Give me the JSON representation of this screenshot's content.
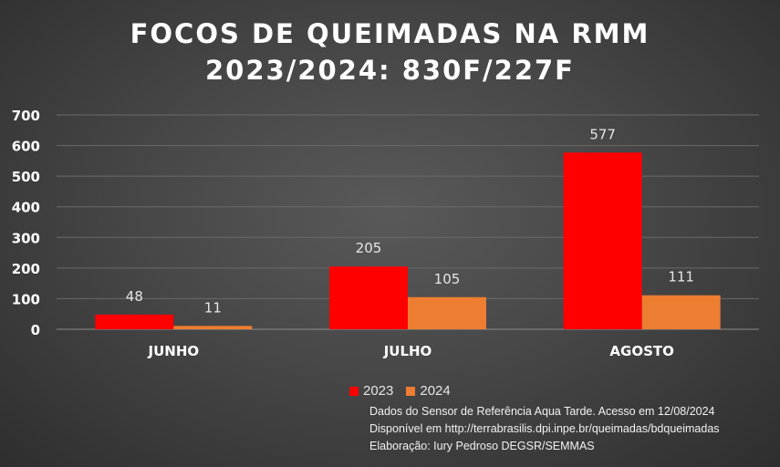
{
  "chart_data": {
    "type": "bar",
    "title": "FOCOS DE QUEIMADAS NA RMM",
    "subtitle": "2023/2024: 830F/227F",
    "categories": [
      "JUNHO",
      "JULHO",
      "AGOSTO"
    ],
    "series": [
      {
        "name": "2023",
        "values": [
          48,
          205,
          577
        ],
        "color": "#ff0000"
      },
      {
        "name": "2024",
        "values": [
          11,
          105,
          111
        ],
        "color": "#ed7d31"
      }
    ],
    "ylim": [
      0,
      700
    ],
    "yticks": [
      "0",
      "100",
      "200",
      "300",
      "400",
      "500",
      "600",
      "700"
    ],
    "grid": true,
    "legend": "bottom",
    "xlabel": "",
    "ylabel": ""
  },
  "source_lines": [
    "Dados do Sensor de Referência  Aqua Tarde. Acesso em 12/08/2024",
    "Disponível em http://terrabrasilis.dpi.inpe.br/queimadas/bdqueimadas",
    "Elaboração: Iury Pedroso DEGSR/SEMMAS"
  ]
}
